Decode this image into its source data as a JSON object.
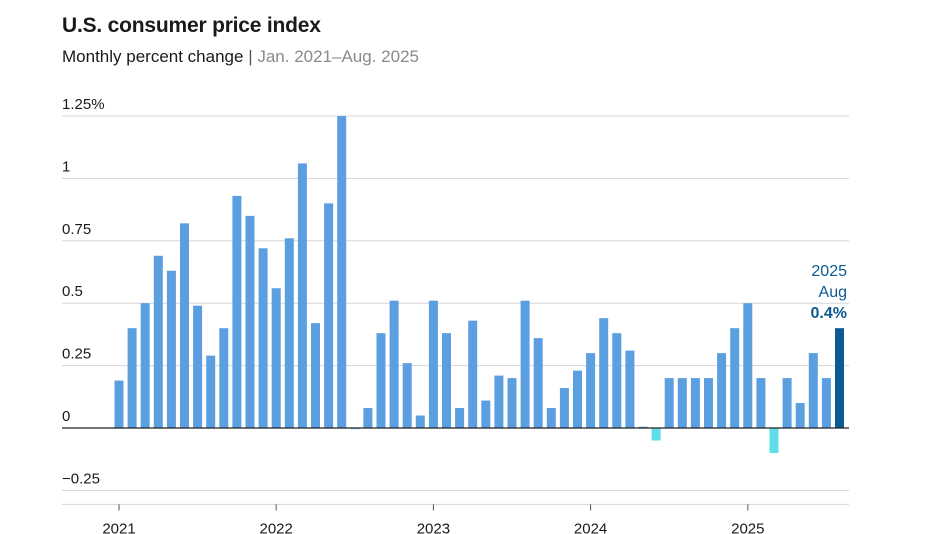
{
  "header": {
    "title": "U.S. consumer price index",
    "subtitle": "Monthly percent change",
    "separator": "|",
    "date_range": "Jan. 2021–Aug. 2025"
  },
  "colors": {
    "positive": "#5b9fe0",
    "negative": "#5fdde8",
    "highlight": "#0b5a91",
    "grid": "#d6d6d6",
    "zero": "#222222"
  },
  "chart_data": {
    "type": "bar",
    "title": "U.S. consumer price index",
    "subtitle": "Monthly percent change | Jan. 2021–Aug. 2025",
    "xlabel": "",
    "ylabel": "",
    "ylim": [
      -0.25,
      1.25
    ],
    "y_ticks": [
      {
        "value": 1.25,
        "label": "1.25%"
      },
      {
        "value": 1,
        "label": "1"
      },
      {
        "value": 0.75,
        "label": "0.75"
      },
      {
        "value": 0.5,
        "label": "0.5"
      },
      {
        "value": 0.25,
        "label": "0.25"
      },
      {
        "value": 0,
        "label": "0"
      },
      {
        "value": -0.25,
        "label": "−0.25"
      }
    ],
    "x_ticks": [
      {
        "date": "2021-01",
        "label": "2021"
      },
      {
        "date": "2022-01",
        "label": "2022"
      },
      {
        "date": "2023-01",
        "label": "2023"
      },
      {
        "date": "2024-01",
        "label": "2024"
      },
      {
        "date": "2025-01",
        "label": "2025"
      }
    ],
    "grid": true,
    "categories": [
      "2021-01",
      "2021-02",
      "2021-03",
      "2021-04",
      "2021-05",
      "2021-06",
      "2021-07",
      "2021-08",
      "2021-09",
      "2021-10",
      "2021-11",
      "2021-12",
      "2022-01",
      "2022-02",
      "2022-03",
      "2022-04",
      "2022-05",
      "2022-06",
      "2022-07",
      "2022-08",
      "2022-09",
      "2022-10",
      "2022-11",
      "2022-12",
      "2023-01",
      "2023-02",
      "2023-03",
      "2023-04",
      "2023-05",
      "2023-06",
      "2023-07",
      "2023-08",
      "2023-09",
      "2023-10",
      "2023-11",
      "2023-12",
      "2024-01",
      "2024-02",
      "2024-03",
      "2024-04",
      "2024-05",
      "2024-06",
      "2024-07",
      "2024-08",
      "2024-09",
      "2024-10",
      "2024-11",
      "2024-12",
      "2025-01",
      "2025-02",
      "2025-03",
      "2025-04",
      "2025-05",
      "2025-06",
      "2025-07",
      "2025-08"
    ],
    "values": [
      0.19,
      0.4,
      0.5,
      0.69,
      0.63,
      0.82,
      0.49,
      0.29,
      0.4,
      0.93,
      0.85,
      0.72,
      0.56,
      0.76,
      1.06,
      0.42,
      0.9,
      1.25,
      -0.005,
      0.08,
      0.38,
      0.51,
      0.26,
      0.05,
      0.51,
      0.38,
      0.08,
      0.43,
      0.11,
      0.21,
      0.2,
      0.51,
      0.36,
      0.08,
      0.16,
      0.23,
      0.3,
      0.44,
      0.38,
      0.31,
      0.005,
      -0.05,
      0.2,
      0.2,
      0.2,
      0.2,
      0.3,
      0.4,
      0.5,
      0.2,
      -0.1,
      0.2,
      0.1,
      0.3,
      0.2,
      0.4
    ],
    "annotation": {
      "year": "2025",
      "month": "Aug",
      "value_label": "0.4%"
    }
  }
}
